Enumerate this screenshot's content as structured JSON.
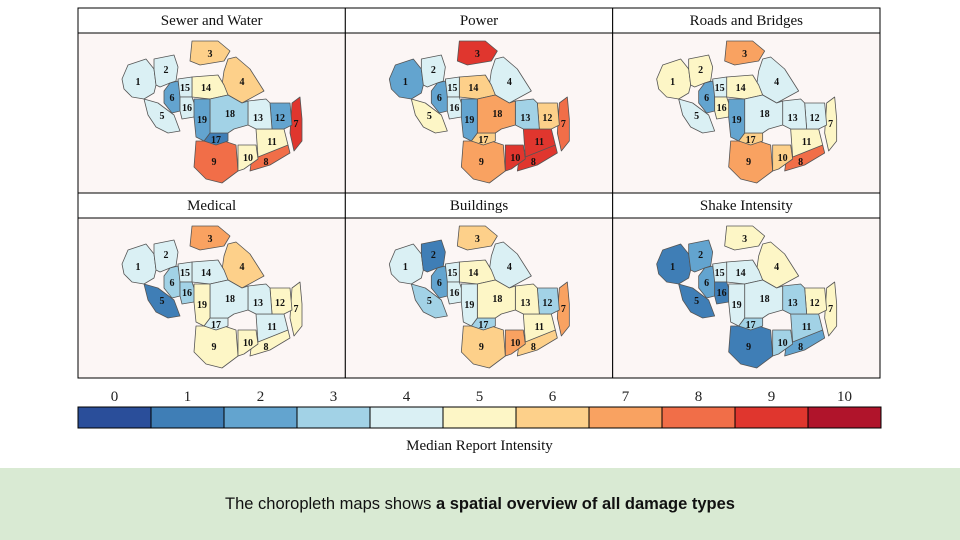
{
  "chart_data": {
    "type": "choropleth",
    "legend": {
      "title": "Median Report Intensity",
      "ticks": [
        "0",
        "1",
        "2",
        "3",
        "4",
        "5",
        "6",
        "7",
        "8",
        "9",
        "10"
      ],
      "colors": [
        "#2a4e9a",
        "#3f7eb6",
        "#63a4cf",
        "#a2d2e6",
        "#daf0f4",
        "#fdf6c6",
        "#fdd08a",
        "#f9a261",
        "#f16e48",
        "#e0362e",
        "#b0142b"
      ]
    },
    "region_labels": [
      "1",
      "2",
      "3",
      "4",
      "5",
      "6",
      "7",
      "8",
      "9",
      "10",
      "11",
      "12",
      "13",
      "14",
      "15",
      "16",
      "17",
      "18",
      "19"
    ],
    "panels": [
      {
        "title": "Sewer and Water",
        "values": {
          "1": 4,
          "2": 4,
          "3": 6,
          "4": 6,
          "5": 4,
          "6": 2,
          "7": 9,
          "8": 8,
          "9": 8,
          "10": 5,
          "11": 5,
          "12": 2,
          "13": 4,
          "14": 5,
          "15": 4,
          "16": 4,
          "17": 1,
          "18": 3,
          "19": 2
        }
      },
      {
        "title": "Power",
        "values": {
          "1": 2,
          "2": 4,
          "3": 9,
          "4": 4,
          "5": 5,
          "6": 2,
          "7": 8,
          "8": 9,
          "9": 7,
          "10": 9,
          "11": 9,
          "12": 6,
          "13": 3,
          "14": 6,
          "15": 4,
          "16": 4,
          "17": 6,
          "18": 7,
          "19": 2
        }
      },
      {
        "title": "Roads and Bridges",
        "values": {
          "1": 5,
          "2": 5,
          "3": 7,
          "4": 4,
          "5": 4,
          "6": 2,
          "7": 5,
          "8": 8,
          "9": 7,
          "10": 6,
          "11": 5,
          "12": 4,
          "13": 4,
          "14": 5,
          "15": 4,
          "16": 5,
          "17": 6,
          "18": 4,
          "19": 2
        }
      },
      {
        "title": "Medical",
        "values": {
          "1": 4,
          "2": 4,
          "3": 7,
          "4": 6,
          "5": 1,
          "6": 3,
          "7": 5,
          "8": 5,
          "9": 5,
          "10": 5,
          "11": 4,
          "12": 5,
          "13": 4,
          "14": 4,
          "15": 4,
          "16": 3,
          "17": 4,
          "18": 4,
          "19": 5
        }
      },
      {
        "title": "Buildings",
        "values": {
          "1": 4,
          "2": 1,
          "3": 6,
          "4": 4,
          "5": 3,
          "6": 2,
          "7": 7,
          "8": 6,
          "9": 6,
          "10": 7,
          "11": 5,
          "12": 3,
          "13": 5,
          "14": 5,
          "15": 4,
          "16": 4,
          "17": 3,
          "18": 5,
          "19": 4
        }
      },
      {
        "title": "Shake Intensity",
        "values": {
          "1": 1,
          "2": 2,
          "3": 5,
          "4": 5,
          "5": 1,
          "6": 2,
          "7": 5,
          "8": 2,
          "9": 1,
          "10": 3,
          "11": 3,
          "12": 5,
          "13": 3,
          "14": 4,
          "15": 4,
          "16": 1,
          "17": 3,
          "18": 4,
          "19": 4
        }
      }
    ]
  },
  "caption": {
    "prefix": "The choropleth maps shows ",
    "emphasis": "a spatial overview of all damage types"
  }
}
